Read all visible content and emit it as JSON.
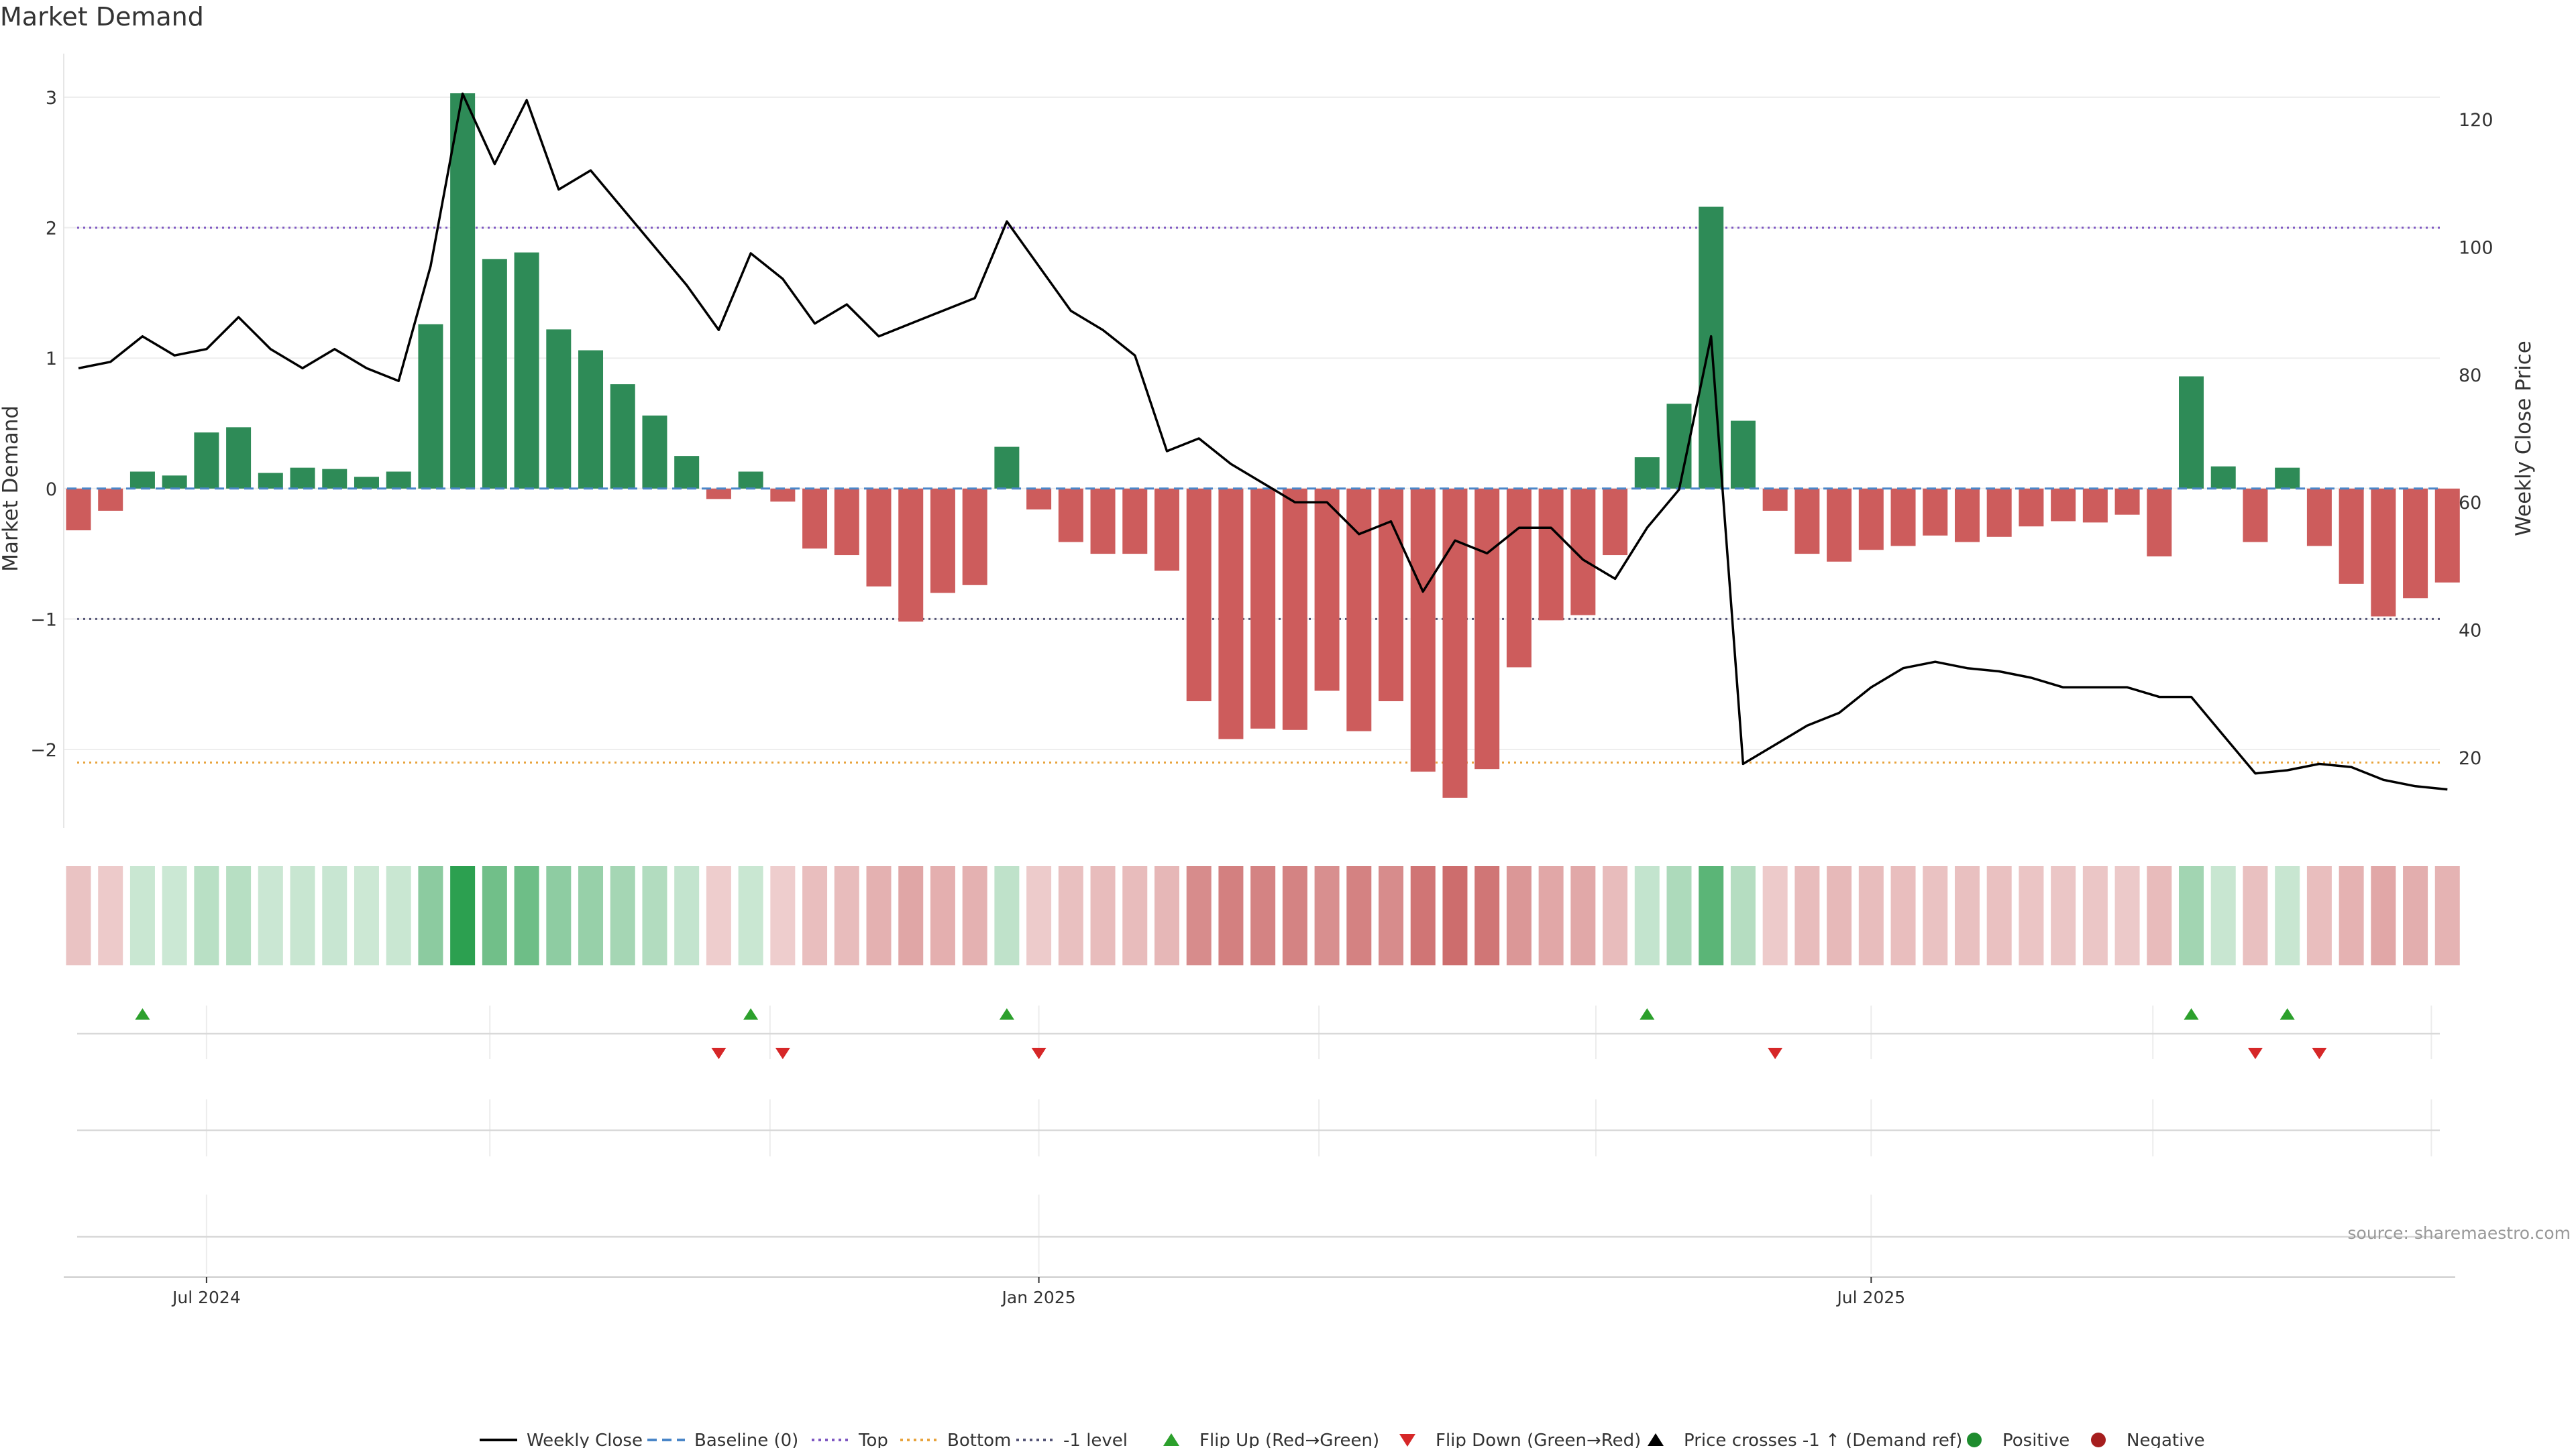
{
  "chart_data": {
    "type": "bar",
    "title": "Market Demand",
    "ylabel": "Market Demand",
    "y2label": "Weekly Close Price",
    "ylim": [
      -2.6,
      3.35
    ],
    "y2lim": [
      10,
      128
    ],
    "yticks": [
      3,
      2,
      1,
      0,
      -1,
      -2
    ],
    "yticklabels": [
      "3",
      "2",
      "1",
      "0",
      "−1",
      "−2"
    ],
    "y2ticks": [
      120,
      100,
      80,
      60,
      40,
      20
    ],
    "levels": {
      "top": 2.0,
      "minus_one": -1.0,
      "bottom": -2.1,
      "baseline": 0
    },
    "colors": {
      "positive": "#2e8b57",
      "negative": "#cd5c5c",
      "close": "#000000",
      "top": "#7e57c2",
      "bottom": "#e8a33c",
      "minus_one": "#555577",
      "baseline": "#4a86c8",
      "flip_up": "#2ca02c",
      "flip_down": "#d62728"
    },
    "x_labels": [
      {
        "index": 4,
        "label": "Jul 2024"
      },
      {
        "index": 30,
        "label": "Jan 2025"
      },
      {
        "index": 56,
        "label": "Jul 2025"
      }
    ],
    "values": [
      -0.32,
      -0.17,
      0.13,
      0.1,
      0.43,
      0.47,
      0.12,
      0.16,
      0.15,
      0.09,
      0.13,
      1.26,
      3.03,
      1.76,
      1.81,
      1.22,
      1.06,
      0.8,
      0.56,
      0.25,
      -0.08,
      0.13,
      -0.1,
      -0.46,
      -0.51,
      -0.75,
      -1.02,
      -0.8,
      -0.74,
      0.32,
      -0.16,
      -0.41,
      -0.5,
      -0.5,
      -0.63,
      -1.63,
      -1.92,
      -1.84,
      -1.85,
      -1.55,
      -1.86,
      -1.63,
      -2.17,
      -2.37,
      -2.15,
      -1.37,
      -1.01,
      -0.97,
      -0.51,
      0.24,
      0.65,
      2.16,
      0.52,
      -0.17,
      -0.5,
      -0.56,
      -0.47,
      -0.44,
      -0.36,
      -0.41,
      -0.37,
      -0.29,
      -0.25,
      -0.26,
      -0.2,
      -0.52,
      0.86,
      0.17,
      -0.41,
      0.16,
      -0.44,
      -0.73,
      -0.98,
      -0.84,
      -0.72
    ],
    "close": [
      81,
      82,
      86,
      83,
      84,
      89,
      84,
      81,
      84,
      81,
      79,
      97,
      124,
      113,
      123,
      109,
      112,
      106,
      100,
      94,
      87,
      99,
      95,
      88,
      91,
      86,
      88,
      90,
      92,
      104,
      97,
      90,
      87,
      83,
      68,
      70,
      66,
      63,
      60,
      60,
      55,
      57,
      46,
      54,
      52,
      56,
      56,
      51,
      48,
      56,
      62,
      86,
      19,
      22,
      25,
      27,
      31,
      34,
      35,
      34,
      33.5,
      32.5,
      31,
      31,
      31,
      29.5,
      29.5,
      23.5,
      17.5,
      18,
      19,
      18.5,
      16.5,
      15.5,
      15
    ],
    "flip_up": [
      2,
      21,
      29,
      49,
      66,
      69
    ],
    "flip_down": [
      20,
      22,
      30,
      53,
      68,
      70
    ],
    "legend": [
      {
        "label": "Weekly Close",
        "marker": "line"
      },
      {
        "label": "Baseline (0)",
        "marker": "dashed-baseline"
      },
      {
        "label": "Top",
        "marker": "dotted-top"
      },
      {
        "label": "Bottom",
        "marker": "dotted-bottom"
      },
      {
        "label": "-1 level",
        "marker": "dotted-minus-one"
      },
      {
        "label": "Flip Up (Red→Green)",
        "marker": "triangle-up-green"
      },
      {
        "label": "Flip Down (Green→Red)",
        "marker": "triangle-down-red"
      },
      {
        "label": "Price crosses -1 ↑ (Demand ref)",
        "marker": "triangle-up-black"
      },
      {
        "label": "Positive",
        "marker": "dot-green"
      },
      {
        "label": "Negative",
        "marker": "dot-red"
      }
    ],
    "source": "source: sharemaestro.com"
  }
}
